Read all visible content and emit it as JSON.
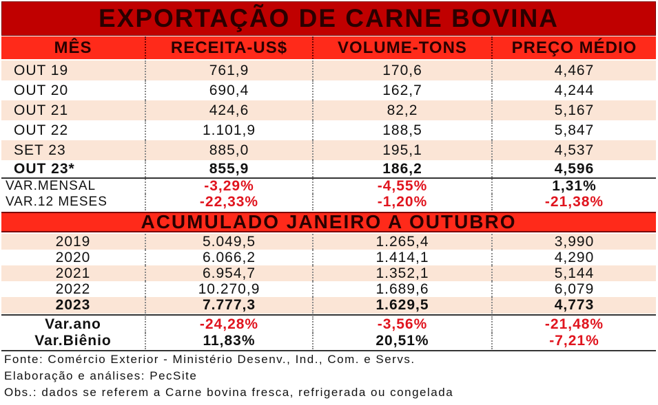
{
  "title": "EXPORTAÇÃO DE CARNE BOVINA",
  "headers": [
    "MÊS",
    "RECEITA-US$",
    "VOLUME-TONS",
    "PREÇO MÉDIO"
  ],
  "monthly": [
    {
      "label": "OUT 19",
      "receita": "761,9",
      "volume": "170,6",
      "preco": "4,467"
    },
    {
      "label": "OUT 20",
      "receita": "690,4",
      "volume": "162,7",
      "preco": "4,244"
    },
    {
      "label": "OUT 21",
      "receita": "424,6",
      "volume": "82,2",
      "preco": "5,167"
    },
    {
      "label": "OUT 22",
      "receita": "1.101,9",
      "volume": "188,5",
      "preco": "5,847"
    },
    {
      "label": "SET 23",
      "receita": "885,0",
      "volume": "195,1",
      "preco": "4,537"
    },
    {
      "label": "OUT 23*",
      "receita": "855,9",
      "volume": "186,2",
      "preco": "4,596"
    }
  ],
  "monthly_var": [
    {
      "label": "VAR.MENSAL",
      "receita": "-3,29%",
      "volume": "-4,55%",
      "preco": "1,31%"
    },
    {
      "label": "VAR.12 MESES",
      "receita": "-22,33%",
      "volume": "-1,20%",
      "preco": "-21,38%"
    }
  ],
  "section_title": "ACUMULADO JANEIRO A OUTUBRO",
  "cumulative": [
    {
      "label": "2019",
      "receita": "5.049,5",
      "volume": "1.265,4",
      "preco": "3,990"
    },
    {
      "label": "2020",
      "receita": "6.066,2",
      "volume": "1.414,1",
      "preco": "4,290"
    },
    {
      "label": "2021",
      "receita": "6.954,7",
      "volume": "1.352,1",
      "preco": "5,144"
    },
    {
      "label": "2022",
      "receita": "10.270,9",
      "volume": "1.689,6",
      "preco": "6,079"
    },
    {
      "label": "2023",
      "receita": "7.777,3",
      "volume": "1.629,5",
      "preco": "4,773"
    }
  ],
  "cumulative_var": [
    {
      "label": "Var.ano",
      "receita": "-24,28%",
      "volume": "-3,56%",
      "preco": "-21,48%"
    },
    {
      "label": "Var.Biênio",
      "receita": "11,83%",
      "volume": "20,51%",
      "preco": "-7,21%"
    }
  ],
  "footer": {
    "fonte": "Fonte: Comércio Exterior - Ministério Desenv., Ind., Com. e Servs.",
    "elaboracao": "Elaboração e análises: PecSite",
    "obs": "Obs.: dados se referem a Carne bovina fresca, refrigerada ou congelada"
  }
}
